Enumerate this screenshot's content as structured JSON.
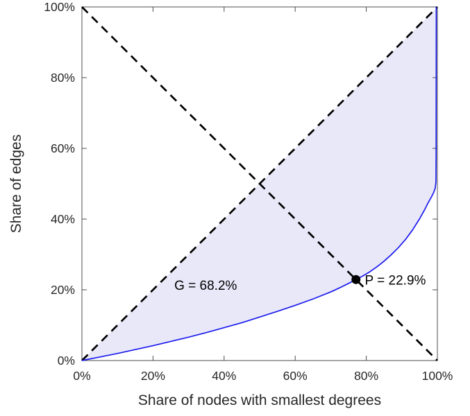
{
  "chart_data": {
    "type": "line",
    "title": "",
    "xlabel": "Share of nodes with smallest degrees",
    "ylabel": "Share of edges",
    "xlim": [
      0,
      100
    ],
    "ylim": [
      0,
      100
    ],
    "x_ticks": [
      0,
      20,
      40,
      60,
      80,
      100
    ],
    "y_ticks": [
      0,
      20,
      40,
      60,
      80,
      100
    ],
    "tick_suffix": "%",
    "grid": false,
    "legend": "none",
    "axis_color": "#4d4d4d",
    "background_color": "#ffffff",
    "series": [
      {
        "name": "equality-diagonal",
        "color": "#000000",
        "style": "dashed",
        "points": [
          [
            0,
            0
          ],
          [
            100,
            100
          ]
        ]
      },
      {
        "name": "anti-diagonal",
        "color": "#000000",
        "style": "dashed",
        "points": [
          [
            0,
            100
          ],
          [
            100,
            0
          ]
        ]
      },
      {
        "name": "lorenz-curve",
        "color": "#1a1aee",
        "style": "solid",
        "points": [
          [
            0,
            0
          ],
          [
            5,
            1.0
          ],
          [
            10,
            2.0
          ],
          [
            15,
            3.1
          ],
          [
            20,
            4.2
          ],
          [
            25,
            5.4
          ],
          [
            30,
            6.6
          ],
          [
            35,
            7.9
          ],
          [
            40,
            9.3
          ],
          [
            45,
            10.7
          ],
          [
            50,
            12.3
          ],
          [
            55,
            13.9
          ],
          [
            60,
            15.6
          ],
          [
            65,
            17.4
          ],
          [
            70,
            19.4
          ],
          [
            73,
            20.8
          ],
          [
            75,
            21.8
          ],
          [
            77.1,
            22.9
          ],
          [
            79,
            23.9
          ],
          [
            81,
            25.1
          ],
          [
            83,
            26.5
          ],
          [
            85,
            28.1
          ],
          [
            87,
            29.9
          ],
          [
            89,
            31.9
          ],
          [
            91,
            34.2
          ],
          [
            93,
            36.9
          ],
          [
            95,
            40.1
          ],
          [
            96.5,
            42.8
          ],
          [
            97.5,
            44.8
          ],
          [
            98.3,
            46.2
          ],
          [
            99.0,
            47.6
          ],
          [
            99.4,
            48.8
          ],
          [
            99.6,
            50.5
          ],
          [
            99.65,
            58
          ],
          [
            99.7,
            100
          ]
        ]
      }
    ],
    "fill_between": {
      "upper": "equality-diagonal",
      "lower": "lorenz-curve",
      "color": "#e8e8f9"
    },
    "annotations": [
      {
        "type": "point",
        "name": "intersection-point-p",
        "x": 77.1,
        "y": 22.9,
        "radius": 6.5,
        "color": "#000000"
      },
      {
        "type": "text",
        "name": "gini-coefficient-label",
        "label": "G = 68.2%",
        "x": 26,
        "y": 20.0,
        "align": "start"
      },
      {
        "type": "text",
        "name": "p-index-label",
        "label": "P = 22.9%",
        "x": 79.6,
        "y": 21.5,
        "align": "start"
      }
    ]
  }
}
